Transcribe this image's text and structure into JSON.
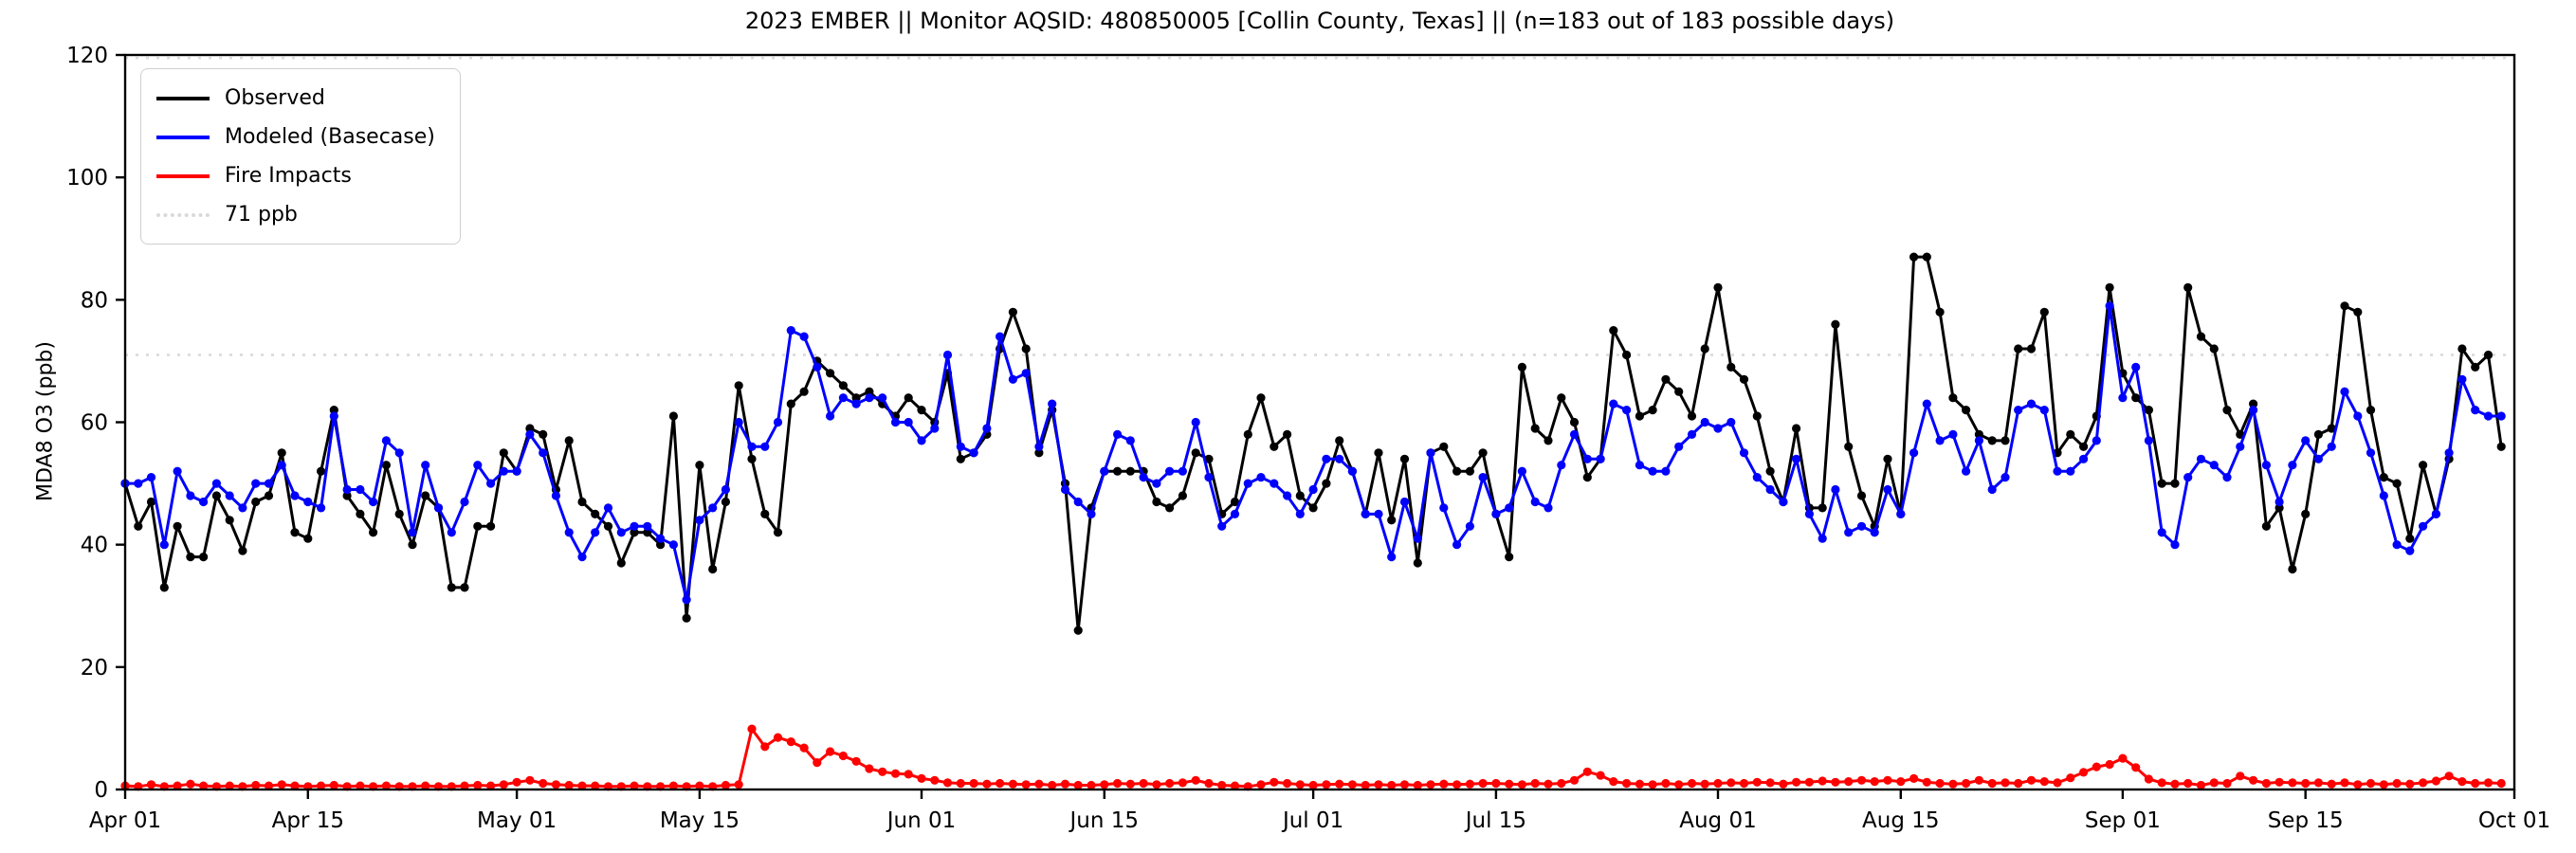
{
  "chart_data": {
    "type": "line",
    "title": "2023 EMBER || Monitor AQSID: 480850005 [Collin County, Texas] || (n=183 out of 183 possible days)",
    "ylabel": "MDA8 O3 (ppb)",
    "xlabel": "",
    "ylim": [
      0,
      120
    ],
    "xlim_days": [
      0,
      183
    ],
    "yticks": [
      0,
      20,
      40,
      60,
      80,
      100,
      120
    ],
    "xticks": [
      {
        "label": "Apr 01",
        "day": 0
      },
      {
        "label": "Apr 15",
        "day": 14
      },
      {
        "label": "May 01",
        "day": 30
      },
      {
        "label": "May 15",
        "day": 44
      },
      {
        "label": "Jun 01",
        "day": 61
      },
      {
        "label": "Jun 15",
        "day": 75
      },
      {
        "label": "Jul 01",
        "day": 91
      },
      {
        "label": "Jul 15",
        "day": 105
      },
      {
        "label": "Aug 01",
        "day": 122
      },
      {
        "label": "Aug 15",
        "day": 136
      },
      {
        "label": "Sep 01",
        "day": 153
      },
      {
        "label": "Sep 15",
        "day": 167
      },
      {
        "label": "Oct 01",
        "day": 183
      }
    ],
    "grid": false,
    "legend_position": "upper-left",
    "threshold_lines": [
      {
        "value": 71,
        "label": "71 ppb",
        "color": "#d9d9d9",
        "style": "dotted"
      },
      {
        "value": 119.5,
        "label": "",
        "color": "#dcdcdc",
        "style": "dotted"
      }
    ],
    "legend_entries": [
      "Observed",
      "Modeled (Basecase)",
      "Fire Impacts",
      "71 ppb"
    ],
    "series": [
      {
        "name": "Observed",
        "color": "#000000",
        "marker": "circle",
        "values": [
          50,
          43,
          47,
          33,
          43,
          38,
          38,
          48,
          44,
          39,
          47,
          48,
          55,
          42,
          41,
          52,
          62,
          48,
          45,
          42,
          53,
          45,
          40,
          48,
          46,
          33,
          33,
          43,
          43,
          55,
          52,
          59,
          58,
          49,
          57,
          47,
          45,
          43,
          37,
          42,
          42,
          40,
          61,
          28,
          53,
          36,
          47,
          66,
          54,
          45,
          42,
          63,
          65,
          70,
          68,
          66,
          64,
          65,
          63,
          61,
          64,
          62,
          60,
          68,
          54,
          55,
          58,
          72,
          78,
          72,
          55,
          62,
          50,
          26,
          46,
          52,
          52,
          52,
          52,
          47,
          46,
          48,
          55,
          54,
          45,
          47,
          58,
          64,
          56,
          58,
          48,
          46,
          50,
          57,
          52,
          45,
          55,
          44,
          54,
          37,
          55,
          56,
          52,
          52,
          55,
          45,
          38,
          69,
          59,
          57,
          64,
          60,
          51,
          54,
          75,
          71,
          61,
          62,
          67,
          65,
          61,
          72,
          82,
          69,
          67,
          61,
          52,
          47,
          59,
          46,
          46,
          76,
          56,
          48,
          43,
          54,
          45,
          87,
          87,
          78,
          64,
          62,
          58,
          57,
          57,
          72,
          72,
          78,
          55,
          58,
          56,
          61,
          82,
          68,
          64,
          62,
          50,
          50,
          82,
          74,
          72,
          62,
          58,
          63,
          43,
          46,
          36,
          45,
          58,
          59,
          79,
          78,
          62,
          51,
          50,
          41,
          53,
          45,
          54,
          72,
          69,
          71,
          56
        ]
      },
      {
        "name": "Modeled (Basecase)",
        "color": "#0000ff",
        "marker": "circle",
        "values": [
          50,
          50,
          51,
          40,
          52,
          48,
          47,
          50,
          48,
          46,
          50,
          50,
          53,
          48,
          47,
          46,
          61,
          49,
          49,
          47,
          57,
          55,
          42,
          53,
          46,
          42,
          47,
          53,
          50,
          52,
          52,
          58,
          55,
          48,
          42,
          38,
          42,
          46,
          42,
          43,
          43,
          41,
          40,
          31,
          44,
          46,
          49,
          60,
          56,
          56,
          60,
          75,
          74,
          69,
          61,
          64,
          63,
          64,
          64,
          60,
          60,
          57,
          59,
          71,
          56,
          55,
          59,
          74,
          67,
          68,
          56,
          63,
          49,
          47,
          45,
          52,
          58,
          57,
          51,
          50,
          52,
          52,
          60,
          51,
          43,
          45,
          50,
          51,
          50,
          48,
          45,
          49,
          54,
          54,
          52,
          45,
          45,
          38,
          47,
          41,
          55,
          46,
          40,
          43,
          51,
          45,
          46,
          52,
          47,
          46,
          53,
          58,
          54,
          54,
          63,
          62,
          53,
          52,
          52,
          56,
          58,
          60,
          59,
          60,
          55,
          51,
          49,
          47,
          54,
          45,
          41,
          49,
          42,
          43,
          42,
          49,
          45,
          55,
          63,
          57,
          58,
          52,
          57,
          49,
          51,
          62,
          63,
          62,
          52,
          52,
          54,
          57,
          79,
          64,
          69,
          57,
          42,
          40,
          51,
          54,
          53,
          51,
          56,
          62,
          53,
          47,
          53,
          57,
          54,
          56,
          65,
          61,
          55,
          48,
          40,
          39,
          43,
          45,
          55,
          67,
          62,
          61,
          61
        ]
      },
      {
        "name": "Fire Impacts",
        "color": "#ff0000",
        "marker": "circle",
        "values": [
          0.6,
          0.5,
          0.8,
          0.5,
          0.6,
          0.9,
          0.6,
          0.5,
          0.6,
          0.5,
          0.7,
          0.6,
          0.8,
          0.6,
          0.5,
          0.6,
          0.7,
          0.5,
          0.6,
          0.5,
          0.6,
          0.5,
          0.5,
          0.6,
          0.5,
          0.5,
          0.6,
          0.7,
          0.6,
          0.8,
          1.2,
          1.5,
          1.0,
          0.8,
          0.7,
          0.6,
          0.6,
          0.5,
          0.5,
          0.6,
          0.5,
          0.5,
          0.6,
          0.5,
          0.6,
          0.5,
          0.7,
          0.8,
          9.9,
          7.0,
          8.5,
          7.8,
          6.8,
          4.4,
          6.2,
          5.5,
          4.6,
          3.4,
          2.9,
          2.6,
          2.5,
          1.8,
          1.5,
          1.1,
          1.0,
          1.0,
          0.9,
          1.0,
          0.9,
          0.8,
          0.9,
          0.7,
          0.9,
          0.7,
          0.7,
          0.8,
          1.0,
          0.9,
          1.0,
          0.8,
          1.0,
          1.1,
          1.5,
          1.0,
          0.7,
          0.6,
          0.5,
          0.8,
          1.2,
          1.0,
          0.8,
          0.7,
          0.8,
          0.9,
          0.8,
          0.7,
          0.8,
          0.7,
          0.8,
          0.7,
          0.8,
          0.9,
          0.8,
          0.9,
          1.0,
          1.0,
          0.9,
          0.8,
          1.0,
          0.9,
          1.0,
          1.5,
          2.9,
          2.3,
          1.3,
          1.0,
          0.9,
          0.8,
          1.0,
          0.8,
          1.0,
          0.9,
          1.0,
          1.1,
          1.0,
          1.2,
          1.1,
          0.9,
          1.2,
          1.2,
          1.4,
          1.2,
          1.3,
          1.5,
          1.3,
          1.5,
          1.3,
          1.8,
          1.2,
          1.0,
          0.9,
          1.0,
          1.5,
          1.0,
          1.1,
          1.0,
          1.5,
          1.3,
          1.1,
          1.9,
          2.8,
          3.7,
          4.1,
          5.1,
          3.6,
          1.7,
          1.1,
          0.9,
          1.0,
          0.7,
          1.1,
          1.0,
          2.2,
          1.5,
          1.0,
          1.2,
          1.1,
          1.0,
          1.1,
          0.9,
          1.1,
          0.8,
          1.0,
          0.8,
          1.0,
          0.9,
          1.1,
          1.4,
          2.2,
          1.3,
          1.0,
          1.1,
          1.0
        ]
      }
    ]
  }
}
